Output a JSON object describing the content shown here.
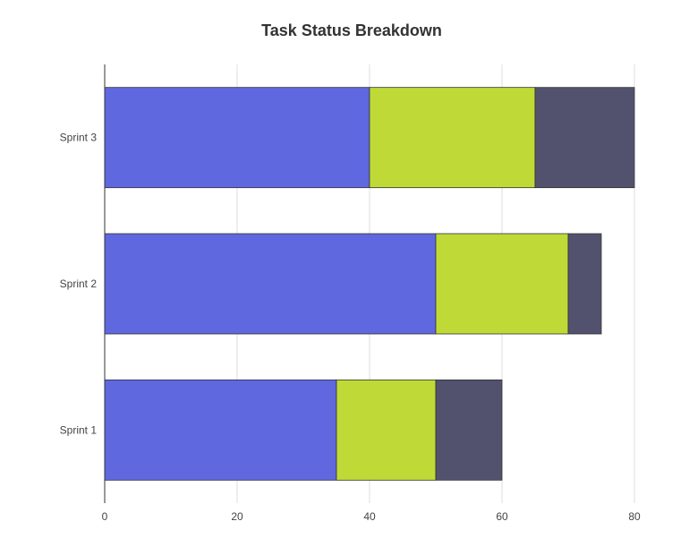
{
  "chart_data": {
    "type": "bar",
    "orientation": "horizontal",
    "stacked": true,
    "title": "Task Status Breakdown",
    "categories": [
      "Sprint 1",
      "Sprint 2",
      "Sprint 3"
    ],
    "series": [
      {
        "color": "#5f68de",
        "values": [
          35,
          50,
          40
        ]
      },
      {
        "color": "#bfda37",
        "values": [
          15,
          20,
          25
        ]
      },
      {
        "color": "#52526e",
        "values": [
          10,
          5,
          15
        ]
      }
    ],
    "xlim": [
      0,
      80
    ],
    "xticks": [
      "0",
      "20",
      "40",
      "60",
      "80"
    ],
    "grid": true,
    "legend": "none"
  }
}
